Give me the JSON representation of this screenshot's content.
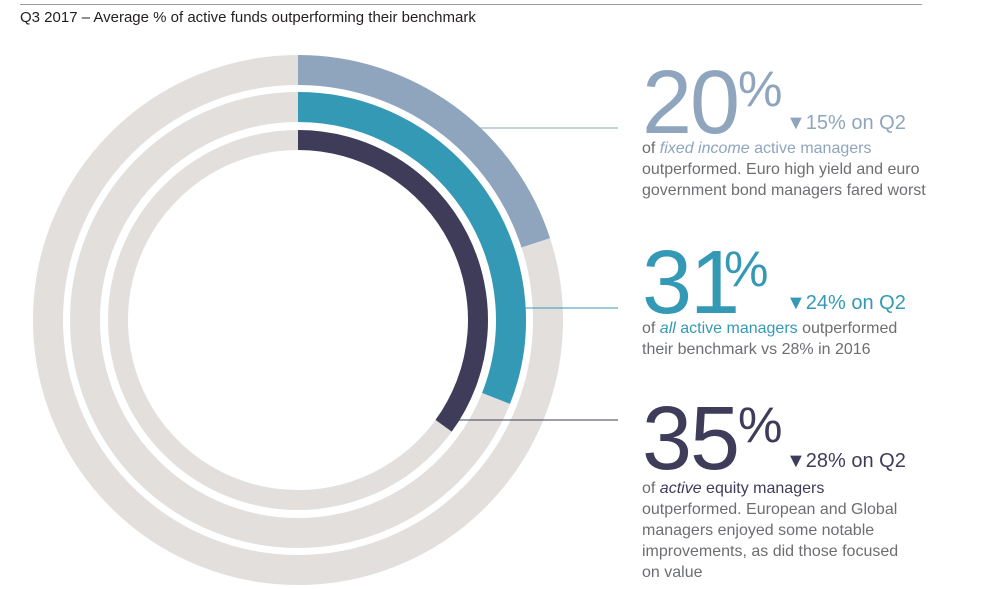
{
  "title": "Q3 2017 – Average % of active funds outperforming their benchmark",
  "colors": {
    "track": "#e2dfdd",
    "fixed_income": "#8ea5bd",
    "all": "#3499b5",
    "equity": "#3e3c59"
  },
  "chart_data": {
    "type": "donut",
    "series": [
      {
        "value_text": "20",
        "pct_sign": "%",
        "value": 20,
        "change": "▼15% on Q2",
        "desc_lead": "of ",
        "desc_em": "fixed income",
        "desc_rest1": " active managers",
        "desc_line2": "outperformed. Euro high yield and euro",
        "desc_line3": "government bond managers fared worst",
        "color_key": "fixed_income"
      },
      {
        "value_text": "31",
        "pct_sign": "%",
        "value": 31,
        "change": "▼24% on Q2",
        "desc_lead": "of ",
        "desc_em": "all",
        "desc_rest1": " active managers",
        "desc_rest1b": " outperformed",
        "desc_line2": "their benchmark vs 28% in 2016",
        "color_key": "all"
      },
      {
        "value_text": "35",
        "pct_sign": "%",
        "value": 35,
        "change": "▼28% on Q2",
        "desc_lead": "of ",
        "desc_em": "active",
        "desc_rest1": " equity managers",
        "desc_line2": "outperformed. European and Global",
        "desc_line3": "managers enjoyed some notable",
        "desc_line4": "improvements, as did those focused",
        "desc_line5": "on value",
        "color_key": "equity"
      }
    ]
  }
}
